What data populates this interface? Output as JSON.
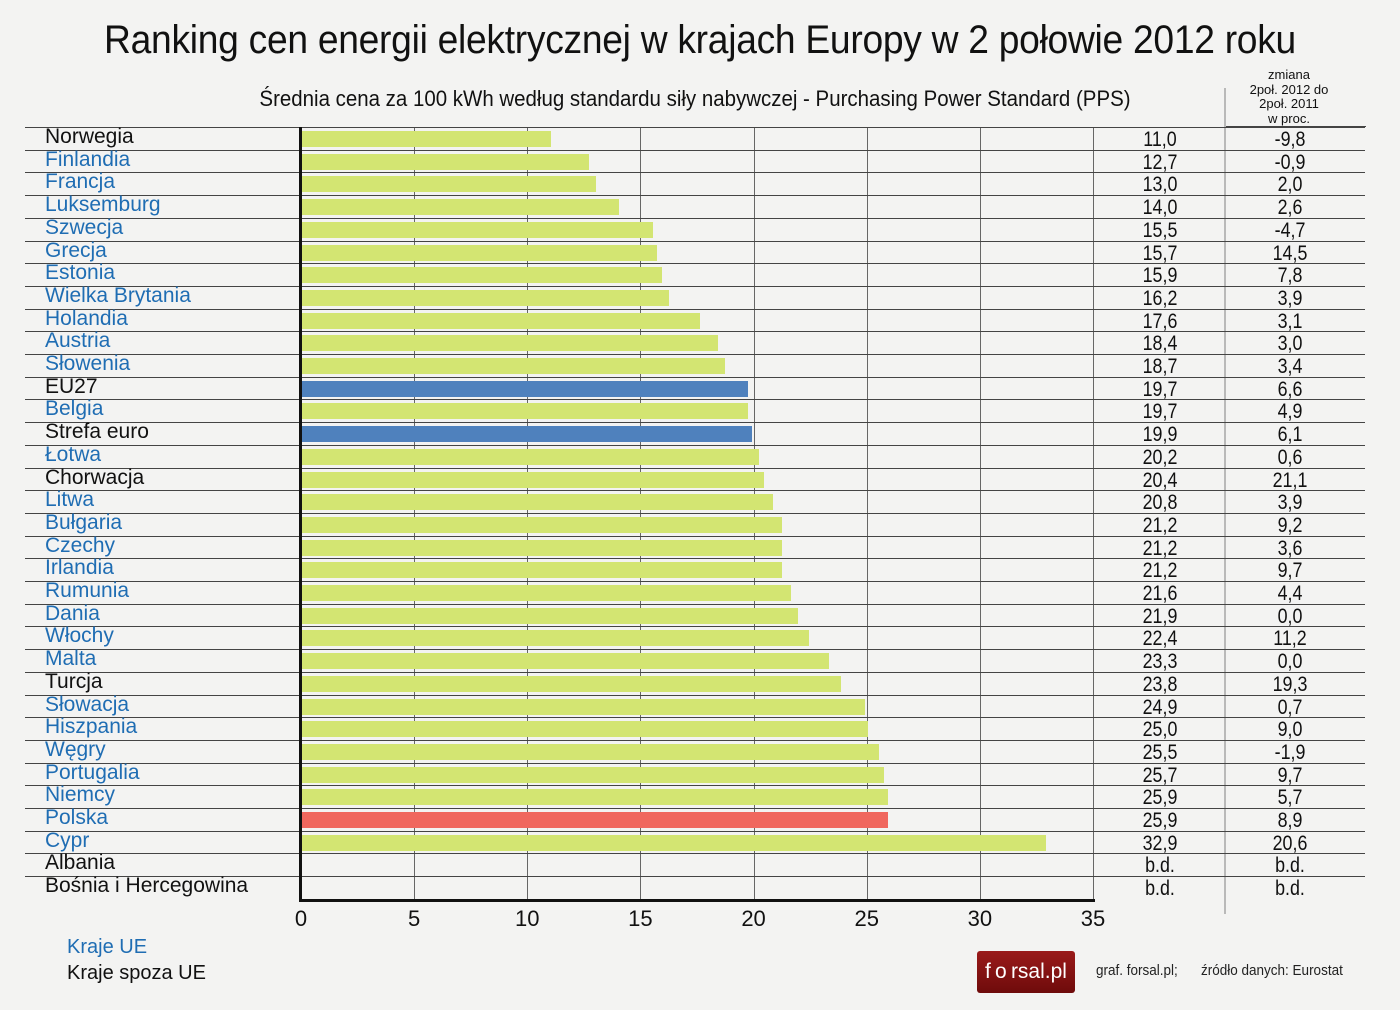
{
  "header": {
    "title": "Ranking cen energii elektrycznej w krajach Europy w 2 połowie 2012 roku",
    "subtitle": "Średnia cena za 100 kWh według standardu siły nabywczej - Purchasing Power Standard (PPS)",
    "change_header": [
      "zmiana",
      "2poł. 2012 do",
      "2poł. 2011",
      "w proc."
    ]
  },
  "colors": {
    "eu_bar": "#d3e572",
    "aggregate_bar": "#4f81bd",
    "poland_bar": "#f0675e",
    "eu_label": "#1f6db3",
    "non_eu_label": "#111111"
  },
  "legend": {
    "eu": "Kraje UE",
    "non_eu": "Kraje spoza UE"
  },
  "footer": {
    "logo": "f o rsal.pl",
    "credit": "graf. forsal.pl;",
    "source": "źródło danych: Eurostat"
  },
  "chart_data": {
    "type": "bar",
    "orientation": "horizontal",
    "title": "Ranking cen energii elektrycznej w krajach Europy w 2 połowie 2012 roku",
    "subtitle": "Średnia cena za 100 kWh według standardu siły nabywczej - Purchasing Power Standard (PPS)",
    "xlabel": "",
    "ylabel": "",
    "xlim": [
      0,
      35
    ],
    "xticks": [
      0,
      5,
      10,
      15,
      20,
      25,
      30,
      35
    ],
    "grid": true,
    "legend": [
      "Kraje UE",
      "Kraje spoza UE"
    ],
    "legend_position": "bottom-left",
    "categories": [
      "Norwegia",
      "Finlandia",
      "Francja",
      "Luksemburg",
      "Szwecja",
      "Grecja",
      "Estonia",
      "Wielka Brytania",
      "Holandia",
      "Austria",
      "Słowenia",
      "EU27",
      "Belgia",
      "Strefa euro",
      "Łotwa",
      "Chorwacja",
      "Litwa",
      "Bułgaria",
      "Czechy",
      "Irlandia",
      "Rumunia",
      "Dania",
      "Włochy",
      "Malta",
      "Turcja",
      "Słowacja",
      "Hiszpania",
      "Węgry",
      "Portugalia",
      "Niemcy",
      "Polska",
      "Cypr",
      "Albania",
      "Bośnia i Hercegowina"
    ],
    "series": [
      {
        "name": "Cena za 100 kWh (PPS)",
        "values": [
          11.0,
          12.7,
          13.0,
          14.0,
          15.5,
          15.7,
          15.9,
          16.2,
          17.6,
          18.4,
          18.7,
          19.7,
          19.7,
          19.9,
          20.2,
          20.4,
          20.8,
          21.2,
          21.2,
          21.2,
          21.6,
          21.9,
          22.4,
          23.3,
          23.8,
          24.9,
          25.0,
          25.5,
          25.7,
          25.9,
          25.9,
          32.9,
          null,
          null
        ]
      },
      {
        "name": "zmiana 2poł. 2012 do 2poł. 2011 w proc.",
        "values": [
          -9.8,
          -0.9,
          2.0,
          2.6,
          -4.7,
          14.5,
          7.8,
          3.9,
          3.1,
          3.0,
          3.4,
          6.6,
          4.9,
          6.1,
          0.6,
          21.1,
          3.9,
          9.2,
          3.6,
          9.7,
          4.4,
          0.0,
          11.2,
          0.0,
          19.3,
          0.7,
          9.0,
          -1.9,
          9.7,
          5.7,
          8.9,
          20.6,
          null,
          null
        ]
      }
    ],
    "rows": [
      {
        "country": "Norwegia",
        "price": "11,0",
        "change": "-9,8",
        "group": "noneu",
        "bar": "eu_bar"
      },
      {
        "country": "Finlandia",
        "price": "12,7",
        "change": "-0,9",
        "group": "eu",
        "bar": "eu_bar"
      },
      {
        "country": "Francja",
        "price": "13,0",
        "change": "2,0",
        "group": "eu",
        "bar": "eu_bar"
      },
      {
        "country": "Luksemburg",
        "price": "14,0",
        "change": "2,6",
        "group": "eu",
        "bar": "eu_bar"
      },
      {
        "country": "Szwecja",
        "price": "15,5",
        "change": "-4,7",
        "group": "eu",
        "bar": "eu_bar"
      },
      {
        "country": "Grecja",
        "price": "15,7",
        "change": "14,5",
        "group": "eu",
        "bar": "eu_bar"
      },
      {
        "country": "Estonia",
        "price": "15,9",
        "change": "7,8",
        "group": "eu",
        "bar": "eu_bar"
      },
      {
        "country": "Wielka Brytania",
        "price": "16,2",
        "change": "3,9",
        "group": "eu",
        "bar": "eu_bar"
      },
      {
        "country": "Holandia",
        "price": "17,6",
        "change": "3,1",
        "group": "eu",
        "bar": "eu_bar"
      },
      {
        "country": "Austria",
        "price": "18,4",
        "change": "3,0",
        "group": "eu",
        "bar": "eu_bar"
      },
      {
        "country": "Słowenia",
        "price": "18,7",
        "change": "3,4",
        "group": "eu",
        "bar": "eu_bar"
      },
      {
        "country": "EU27",
        "price": "19,7",
        "change": "6,6",
        "group": "noneu",
        "bar": "aggregate_bar"
      },
      {
        "country": "Belgia",
        "price": "19,7",
        "change": "4,9",
        "group": "eu",
        "bar": "eu_bar"
      },
      {
        "country": "Strefa euro",
        "price": "19,9",
        "change": "6,1",
        "group": "noneu",
        "bar": "aggregate_bar"
      },
      {
        "country": "Łotwa",
        "price": "20,2",
        "change": "0,6",
        "group": "eu",
        "bar": "eu_bar"
      },
      {
        "country": "Chorwacja",
        "price": "20,4",
        "change": "21,1",
        "group": "noneu",
        "bar": "eu_bar"
      },
      {
        "country": "Litwa",
        "price": "20,8",
        "change": "3,9",
        "group": "eu",
        "bar": "eu_bar"
      },
      {
        "country": "Bułgaria",
        "price": "21,2",
        "change": "9,2",
        "group": "eu",
        "bar": "eu_bar"
      },
      {
        "country": "Czechy",
        "price": "21,2",
        "change": "3,6",
        "group": "eu",
        "bar": "eu_bar"
      },
      {
        "country": "Irlandia",
        "price": "21,2",
        "change": "9,7",
        "group": "eu",
        "bar": "eu_bar"
      },
      {
        "country": "Rumunia",
        "price": "21,6",
        "change": "4,4",
        "group": "eu",
        "bar": "eu_bar"
      },
      {
        "country": "Dania",
        "price": "21,9",
        "change": "0,0",
        "group": "eu",
        "bar": "eu_bar"
      },
      {
        "country": "Włochy",
        "price": "22,4",
        "change": "11,2",
        "group": "eu",
        "bar": "eu_bar"
      },
      {
        "country": "Malta",
        "price": "23,3",
        "change": "0,0",
        "group": "eu",
        "bar": "eu_bar"
      },
      {
        "country": "Turcja",
        "price": "23,8",
        "change": "19,3",
        "group": "noneu",
        "bar": "eu_bar"
      },
      {
        "country": "Słowacja",
        "price": "24,9",
        "change": "0,7",
        "group": "eu",
        "bar": "eu_bar"
      },
      {
        "country": "Hiszpania",
        "price": "25,0",
        "change": "9,0",
        "group": "eu",
        "bar": "eu_bar"
      },
      {
        "country": "Węgry",
        "price": "25,5",
        "change": "-1,9",
        "group": "eu",
        "bar": "eu_bar"
      },
      {
        "country": "Portugalia",
        "price": "25,7",
        "change": "9,7",
        "group": "eu",
        "bar": "eu_bar"
      },
      {
        "country": "Niemcy",
        "price": "25,9",
        "change": "5,7",
        "group": "eu",
        "bar": "eu_bar"
      },
      {
        "country": "Polska",
        "price": "25,9",
        "change": "8,9",
        "group": "eu",
        "bar": "poland_bar"
      },
      {
        "country": "Cypr",
        "price": "32,9",
        "change": "20,6",
        "group": "eu",
        "bar": "eu_bar"
      },
      {
        "country": "Albania",
        "price": "b.d.",
        "change": "b.d.",
        "group": "noneu",
        "bar": "eu_bar"
      },
      {
        "country": "Bośnia i Hercegowina",
        "price": "b.d.",
        "change": "b.d.",
        "group": "noneu",
        "bar": "eu_bar"
      }
    ]
  }
}
